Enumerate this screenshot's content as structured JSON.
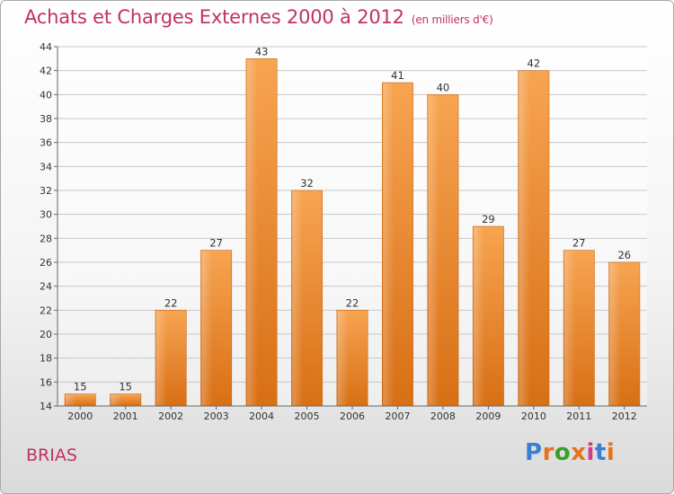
{
  "title": "Achats et Charges Externes 2000 à 2012",
  "subtitle": "(en milliers d'€)",
  "commune": "BRIAS",
  "logo": {
    "text": "Proxiti",
    "colors": [
      "#3a7fd4",
      "#e8731a",
      "#3a9e2f",
      "#e8731a",
      "#d23b8c",
      "#3a7fd4",
      "#e8731a"
    ]
  },
  "chart_data": {
    "type": "bar",
    "title": "Achats et Charges Externes 2000 à 2012",
    "subtitle": "(en milliers d'€)",
    "categories": [
      "2000",
      "2001",
      "2002",
      "2003",
      "2004",
      "2005",
      "2006",
      "2007",
      "2008",
      "2009",
      "2010",
      "2011",
      "2012"
    ],
    "values": [
      15,
      15,
      22,
      27,
      43,
      32,
      22,
      41,
      40,
      29,
      42,
      27,
      26
    ],
    "ylim": [
      14,
      44
    ],
    "yticks": [
      14,
      16,
      18,
      20,
      22,
      24,
      26,
      28,
      30,
      32,
      34,
      36,
      38,
      40,
      42,
      44
    ],
    "grid": true,
    "bar_color": "#f0933a",
    "xlabel": "",
    "ylabel": ""
  }
}
